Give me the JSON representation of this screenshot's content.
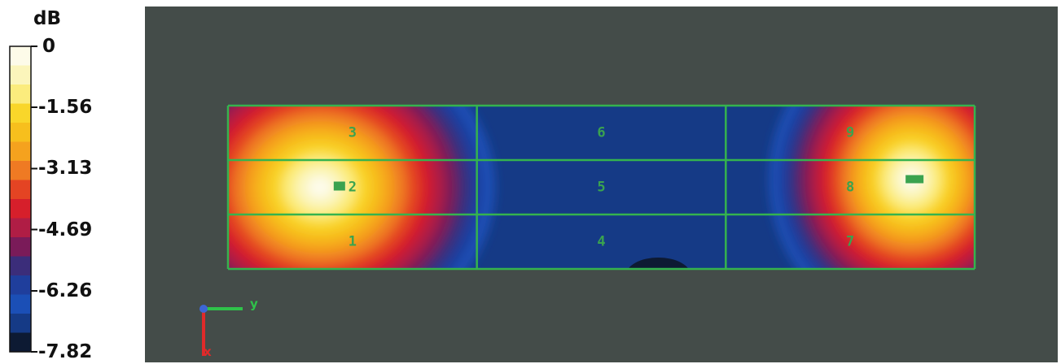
{
  "chart_data": {
    "type": "heatmap",
    "title": "",
    "colorbar": {
      "unit": "dB",
      "tick_labels": [
        "0",
        "-1.56",
        "-3.13",
        "-4.69",
        "-6.26",
        "-7.82"
      ],
      "ticks": [
        0,
        -1.56,
        -3.13,
        -4.69,
        -6.26,
        -7.82
      ],
      "range": [
        -7.82,
        0
      ],
      "levels": 16,
      "colors": [
        "#fdfbe9",
        "#fbf5bb",
        "#fbec7d",
        "#f9d62a",
        "#f7bf1d",
        "#f5a21e",
        "#ef7a23",
        "#e44423",
        "#d61f2b",
        "#b01d45",
        "#7a1b59",
        "#3b2d7a",
        "#1f3e9c",
        "#1b4fb6",
        "#153a86",
        "#0d1a33"
      ]
    },
    "zones": [
      "1",
      "2",
      "3",
      "4",
      "5",
      "6",
      "7",
      "8",
      "9"
    ],
    "hotspots": [
      {
        "zone": "2",
        "value": 0
      },
      {
        "zone": "8",
        "value": 0
      }
    ],
    "axes_triad": {
      "y_label": "y",
      "x_label": "x",
      "y_color": "#2fc24a",
      "x_color": "#e02a2a",
      "z_color": "#e07820"
    },
    "colors": {
      "grid": "#35b34e",
      "background": "#444c49",
      "label": "#3aa34f"
    }
  }
}
